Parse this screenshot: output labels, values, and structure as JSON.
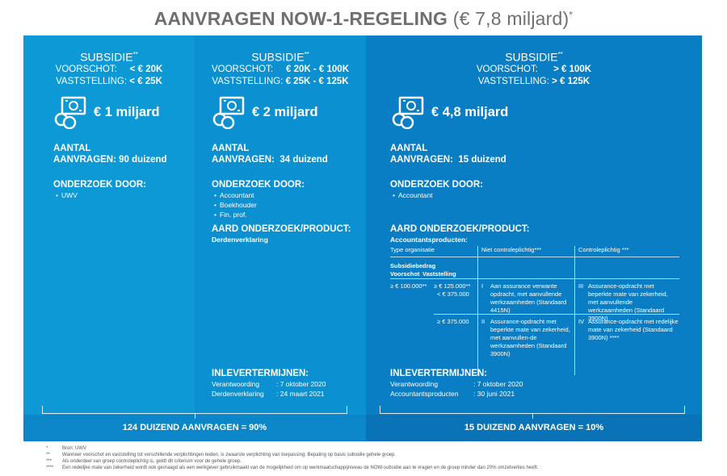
{
  "title": {
    "bold": "AANVRAGEN NOW-1-REGELING",
    "light": "(€ 7,8 miljard)",
    "star": "*"
  },
  "columns": [
    {
      "subsidie": "SUBSIDIE",
      "subsidie_star": "**",
      "voorschot_label": "VOORSCHOT:",
      "voorschot_value": "< € 20K",
      "vaststelling_label": "VASTSTELLING:",
      "vaststelling_value": "< € 25K",
      "amount": "€ 1 miljard",
      "aantal_label": "AANTAL",
      "aanvragen_label": "AANVRAGEN:",
      "aanvragen_value": "90 duizend",
      "onderzoek_label": "ONDERZOEK DOOR:",
      "onderzoek_items": [
        "UWV"
      ]
    },
    {
      "subsidie": "SUBSIDIE",
      "subsidie_star": "**",
      "voorschot_label": "VOORSCHOT:",
      "voorschot_value": "€ 20K - € 100K",
      "vaststelling_label": "VASTSTELLING:",
      "vaststelling_value": "€ 25K - € 125K",
      "amount": "€ 2 miljard",
      "aantal_label": "AANTAL",
      "aanvragen_label": "AANVRAGEN:",
      "aanvragen_value": "34 duizend",
      "onderzoek_label": "ONDERZOEK DOOR:",
      "onderzoek_items": [
        "Accountant",
        "Boekhouder",
        "Fin. prof."
      ],
      "aard_label": "AARD ONDERZOEK/PRODUCT:",
      "aard_value": "Derdenverklaring",
      "inlever_label": "INLEVERTERMIJNEN:",
      "inlever_rows": [
        {
          "k": "Verantwoording",
          "v": ": 7 oktober 2020"
        },
        {
          "k": "Derdenverklaring",
          "v": ": 24 maart 2021"
        }
      ]
    },
    {
      "subsidie": "SUBSIDIE",
      "subsidie_star": "**",
      "voorschot_label": "VOORSCHOT:",
      "voorschot_value": "> € 100K",
      "vaststelling_label": "VASTSTELLING:",
      "vaststelling_value": "> € 125K",
      "amount": "€ 4,8 miljard",
      "aantal_label": "AANTAL",
      "aanvragen_label": "AANVRAGEN:",
      "aanvragen_value": "15 duizend",
      "onderzoek_label": "ONDERZOEK DOOR:",
      "onderzoek_items": [
        "Accountant"
      ],
      "aard_label": "AARD ONDERZOEK/PRODUCT:",
      "aard_value": "Accountantsproducten:",
      "table": {
        "h_type": "Type organisatie",
        "h_niet": "Niet controleplichtig***",
        "h_contr": "Controleplichtig ***",
        "h_sub": "Subsidiebedrag",
        "h_voor": "Voorschot",
        "h_vast": "Vaststelling",
        "r1_voor": "≥ € 100.000**",
        "r1_vast": "≥ € 125.000**",
        "r1_vast2": "< € 375.000",
        "r1_num_a": "I",
        "r1_text_a": "Aan assurance verwante opdracht, met aanvullende werkzaamheden (Standaard 4415N)",
        "r1_num_b": "III",
        "r1_text_b": "Assurance-opdracht met beperkte mate van zekerheid, met aanvullende werkzaamheden (Standaard 3900N)",
        "r2_vast": "≥ € 375.000",
        "r2_num_a": "II",
        "r2_text_a": "Assurance-opdracht met beperkte mate van zekerheid, met aanvullen-de werkzaamheden (Standaard 3900N)",
        "r2_num_b": "IV",
        "r2_text_b": "Assurance-opdracht met redelijke mate van zekerheid (Standaard 3900N) ****"
      },
      "inlever_label": "INLEVERTERMIJNEN:",
      "inlever_rows": [
        {
          "k": "Verantwoording",
          "v": ": 7 oktober 2020"
        },
        {
          "k": "Accountantsproducten",
          "v": ": 30 juni 2021"
        }
      ]
    }
  ],
  "totals": {
    "left": "124 DUIZEND AANVRAGEN = 90%",
    "right": "15 DUIZEND AANVRAGEN = 10%"
  },
  "notes": [
    {
      "k": "*",
      "v": "Bron: UWV"
    },
    {
      "k": "**",
      "v": "Wanneer voorschot en vaststelling tot verschillende verplichtingen leiden, is zwaarste verplichting van toepassing. Bepaling op basis subsidie gehele groep."
    },
    {
      "k": "***",
      "v": "Als onderdeel van groep controleplichtig is, geldt dit criterium voor de gehele groep."
    },
    {
      "k": "****",
      "v": "Een redelijke mate van zekerheid wordt ook gevraagd als een werkgever gebruikmaakt van de mogelijkheid om op werkmaatschappijniveau de NOW-subsidie aan te vragen en de groep minder dan 20% omzetverlies heeft."
    }
  ]
}
